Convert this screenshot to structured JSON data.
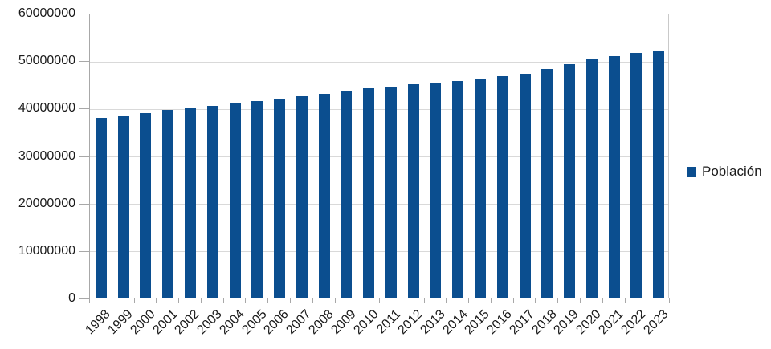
{
  "chart_data": {
    "type": "bar",
    "categories": [
      "1998",
      "1999",
      "2000",
      "2001",
      "2002",
      "2003",
      "2004",
      "2005",
      "2006",
      "2007",
      "2008",
      "2009",
      "2010",
      "2011",
      "2012",
      "2013",
      "2014",
      "2015",
      "2016",
      "2017",
      "2018",
      "2019",
      "2020",
      "2021",
      "2022",
      "2023"
    ],
    "series": [
      {
        "name": "Población",
        "values": [
          37800000,
          38300000,
          38800000,
          39500000,
          39900000,
          40400000,
          40900000,
          41500000,
          41900000,
          42400000,
          43000000,
          43600000,
          44100000,
          44500000,
          44900000,
          45200000,
          45700000,
          46200000,
          46700000,
          47200000,
          48100000,
          49200000,
          50300000,
          50900000,
          51600000,
          52100000
        ]
      }
    ],
    "xlabel": "",
    "ylabel": "",
    "ylim": [
      0,
      60000000
    ],
    "y_ticks": [
      60000000,
      50000000,
      40000000,
      30000000,
      20000000,
      10000000,
      0
    ],
    "x_tick_rotation_deg": 45,
    "grid": true,
    "legend_position": "right",
    "colors": {
      "bar": "#0b4e8f",
      "grid": "#d9d9d9",
      "axis": "#a8a8a8",
      "plot_border": "#c9c9c9",
      "label_text": "#1a1a1a"
    }
  },
  "legend": {
    "items": [
      {
        "label": "Población",
        "swatch_color": "#0b4e8f"
      }
    ]
  }
}
